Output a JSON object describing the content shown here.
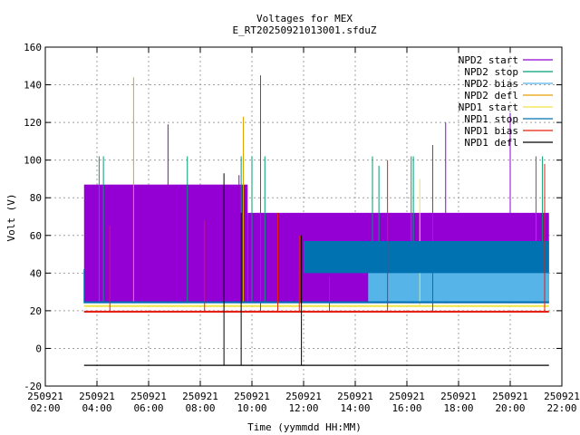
{
  "chart_data": {
    "type": "line",
    "title": "Voltages for MEX",
    "subtitle": "E_RT20250921013001.sfduZ",
    "xlabel": "Time (yymmdd HH:MM)",
    "ylabel": "Volt (V)",
    "xlim": [
      "2025-09-21 02:00",
      "2025-09-21 22:00"
    ],
    "ylim": [
      -20,
      160
    ],
    "grid": true,
    "legend_position": "top-right",
    "x_ticks": [
      {
        "date": "250921",
        "time": "02:00"
      },
      {
        "date": "250921",
        "time": "04:00"
      },
      {
        "date": "250921",
        "time": "06:00"
      },
      {
        "date": "250921",
        "time": "08:00"
      },
      {
        "date": "250921",
        "time": "10:00"
      },
      {
        "date": "250921",
        "time": "12:00"
      },
      {
        "date": "250921",
        "time": "14:00"
      },
      {
        "date": "250921",
        "time": "16:00"
      },
      {
        "date": "250921",
        "time": "18:00"
      },
      {
        "date": "250921",
        "time": "20:00"
      },
      {
        "date": "250921",
        "time": "22:00"
      }
    ],
    "y_ticks": [
      -20,
      0,
      20,
      40,
      60,
      80,
      100,
      120,
      140,
      160
    ],
    "series": [
      {
        "name": "NPD2 start",
        "color": "#9400d3",
        "bands": [
          {
            "x0": "03:30",
            "x1": "09:50",
            "lo": 24,
            "hi": 87
          },
          {
            "x0": "09:50",
            "x1": "14:00",
            "lo": 24,
            "hi": 72
          },
          {
            "x0": "14:00",
            "x1": "21:30",
            "lo": 24,
            "hi": 72
          }
        ],
        "spikes": [
          {
            "x": "06:45",
            "y": 119
          },
          {
            "x": "09:30",
            "y": 92
          },
          {
            "x": "17:30",
            "y": 120
          },
          {
            "x": "20:00",
            "y": 125
          }
        ]
      },
      {
        "name": "NPD2 stop",
        "color": "#009e73",
        "bands": [],
        "spikes": [
          {
            "x": "04:05",
            "y": 102
          },
          {
            "x": "04:15",
            "y": 102
          },
          {
            "x": "07:30",
            "y": 102
          },
          {
            "x": "09:35",
            "y": 102
          },
          {
            "x": "10:00",
            "y": 102
          },
          {
            "x": "10:30",
            "y": 102
          },
          {
            "x": "14:40",
            "y": 102
          },
          {
            "x": "14:55",
            "y": 97
          },
          {
            "x": "16:10",
            "y": 102
          },
          {
            "x": "16:15",
            "y": 102
          },
          {
            "x": "21:00",
            "y": 102
          },
          {
            "x": "21:15",
            "y": 102
          }
        ]
      },
      {
        "name": "NPD2 bias",
        "color": "#56b4e9",
        "bands": [
          {
            "x0": "14:30",
            "x1": "21:30",
            "lo": 25,
            "hi": 41
          }
        ],
        "spikes": []
      },
      {
        "name": "NPD2 defl",
        "color": "#e69f00",
        "bands": [],
        "spikes": [
          {
            "x": "05:25",
            "y": 144
          },
          {
            "x": "09:40",
            "y": 123
          }
        ]
      },
      {
        "name": "NPD1 start",
        "color": "#f0e442",
        "bands": [
          {
            "x0": "03:30",
            "x1": "21:30",
            "lo": 22,
            "hi": 23
          }
        ],
        "spikes": [
          {
            "x": "16:30",
            "y": 90
          }
        ]
      },
      {
        "name": "NPD1 stop",
        "color": "#0072b2",
        "bands": [
          {
            "x0": "03:30",
            "x1": "21:30",
            "lo": 24,
            "hi": 25
          },
          {
            "x0": "12:00",
            "x1": "21:30",
            "lo": 40,
            "hi": 57
          }
        ],
        "spikes": [
          {
            "x": "03:30",
            "y": 42
          }
        ]
      },
      {
        "name": "NPD1 bias",
        "color": "#e51e10",
        "bands": [
          {
            "x0": "03:30",
            "x1": "21:30",
            "lo": 19,
            "hi": 20
          }
        ],
        "spikes": [
          {
            "x": "04:30",
            "y": 65
          },
          {
            "x": "08:10",
            "y": 68
          },
          {
            "x": "10:20",
            "y": 145
          },
          {
            "x": "11:00",
            "y": 72
          },
          {
            "x": "11:50",
            "y": 60
          },
          {
            "x": "15:15",
            "y": 100
          },
          {
            "x": "17:00",
            "y": 108
          },
          {
            "x": "21:20",
            "y": 98
          },
          {
            "x": "13:00",
            "y": 38
          }
        ]
      },
      {
        "name": "NPD1 defl",
        "color": "#000000",
        "bands": [
          {
            "x0": "03:30",
            "x1": "21:30",
            "lo": -9,
            "hi": -9
          }
        ],
        "spikes": [
          {
            "x": "08:55",
            "y": 93
          },
          {
            "x": "09:35",
            "y": 72
          },
          {
            "x": "11:55",
            "y": 60
          }
        ]
      }
    ]
  }
}
